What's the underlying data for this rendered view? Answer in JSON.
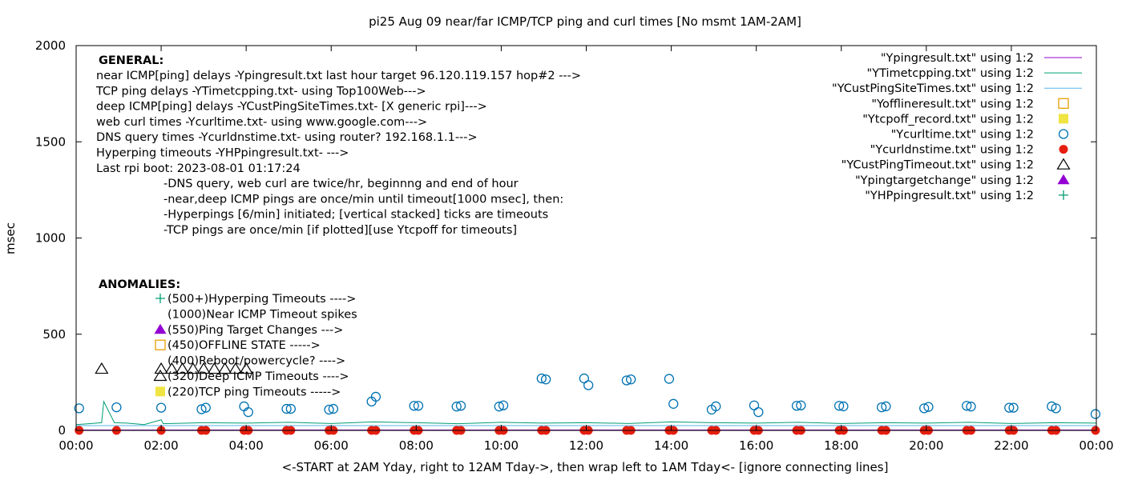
{
  "chart_data": {
    "type": "scatter",
    "title": "pi25 Aug 09  near/far ICMP/TCP ping and curl times [No msmt 1AM-2AM]",
    "xlabel": "<-START at 2AM Yday, right to 12AM Tday->, then wrap left to 1AM Tday<- [ignore connecting lines]",
    "ylabel": "msec",
    "xlim": [
      0,
      24
    ],
    "ylim": [
      0,
      2000
    ],
    "grid": false,
    "legend_position": "top-right",
    "x_ticks": [
      {
        "v": 0,
        "label": "00:00"
      },
      {
        "v": 2,
        "label": "02:00"
      },
      {
        "v": 4,
        "label": "04:00"
      },
      {
        "v": 6,
        "label": "06:00"
      },
      {
        "v": 8,
        "label": "08:00"
      },
      {
        "v": 10,
        "label": "10:00"
      },
      {
        "v": 12,
        "label": "12:00"
      },
      {
        "v": 14,
        "label": "14:00"
      },
      {
        "v": 16,
        "label": "16:00"
      },
      {
        "v": 18,
        "label": "18:00"
      },
      {
        "v": 20,
        "label": "20:00"
      },
      {
        "v": 22,
        "label": "22:00"
      },
      {
        "v": 24,
        "label": "00:00"
      }
    ],
    "y_ticks": [
      {
        "v": 0,
        "label": "0"
      },
      {
        "v": 500,
        "label": "500"
      },
      {
        "v": 1000,
        "label": "1000"
      },
      {
        "v": 1500,
        "label": "1500"
      },
      {
        "v": 2000,
        "label": "2000"
      }
    ],
    "series": [
      {
        "name": "\"Ypingresult.txt\" using 1:2",
        "color": "#9400d3",
        "style": "line",
        "x": [
          0,
          24
        ],
        "y": [
          2,
          2
        ]
      },
      {
        "name": "\"YTimetcpping.txt\" using 1:2",
        "color": "#009e73",
        "style": "line",
        "x": [
          0,
          0.3,
          0.6,
          0.65,
          0.9,
          1.2,
          1.6,
          2.0,
          2.05,
          3.0,
          4.0,
          5.0,
          6.0,
          7.0,
          8.0,
          9.0,
          10.0,
          11.0,
          12.0,
          13.0,
          14.0,
          15.0,
          16.0,
          17.0,
          18.0,
          19.0,
          20.0,
          21.0,
          22.0,
          23.0,
          24.0
        ],
        "y": [
          30,
          35,
          40,
          150,
          40,
          38,
          30,
          55,
          35,
          40,
          38,
          42,
          36,
          44,
          40,
          35,
          42,
          38,
          40,
          36,
          44,
          40,
          38,
          42,
          36,
          40,
          38,
          42,
          36,
          40,
          38
        ]
      },
      {
        "name": "\"YCustPingSiteTimes.txt\" using 1:2",
        "color": "#56b4e9",
        "style": "line",
        "x": [
          0,
          24
        ],
        "y": [
          25,
          25
        ]
      },
      {
        "name": "\"Yofflineresult.txt\" using 1:2",
        "color": "#e69f00",
        "style": "open-square",
        "x": [],
        "y": []
      },
      {
        "name": "\"Ytcpoff_record.txt\" using 1:2",
        "color": "#f0e442",
        "style": "filled-square",
        "x": [],
        "y": []
      },
      {
        "name": "\"Ycurltime.txt\" using 1:2",
        "color": "#0072b2",
        "style": "open-circle",
        "x": [
          0.07,
          0.95,
          2.0,
          2.95,
          3.05,
          3.95,
          4.05,
          4.95,
          5.05,
          5.95,
          6.05,
          6.95,
          7.05,
          7.95,
          8.05,
          8.95,
          9.05,
          9.95,
          10.05,
          10.95,
          11.05,
          11.95,
          12.05,
          12.95,
          13.05,
          13.95,
          14.05,
          14.95,
          15.05,
          15.95,
          16.05,
          16.95,
          17.05,
          17.95,
          18.05,
          18.95,
          19.05,
          19.95,
          20.05,
          20.95,
          21.05,
          21.95,
          22.05,
          22.95,
          23.05,
          23.98
        ],
        "y": [
          115,
          120,
          118,
          110,
          118,
          125,
          95,
          112,
          112,
          108,
          112,
          150,
          175,
          128,
          128,
          124,
          128,
          124,
          130,
          270,
          265,
          270,
          235,
          260,
          265,
          268,
          138,
          108,
          125,
          130,
          95,
          128,
          130,
          128,
          125,
          120,
          125,
          115,
          122,
          128,
          124,
          118,
          118,
          125,
          115,
          85
        ]
      },
      {
        "name": "\"Ycurldnstime.txt\" using 1:2",
        "color": "#e51e10",
        "style": "filled-circle",
        "x": [
          0.07,
          0.95,
          2.0,
          2.95,
          3.05,
          3.95,
          4.05,
          4.95,
          5.05,
          5.95,
          6.05,
          6.95,
          7.05,
          7.95,
          8.05,
          8.95,
          9.05,
          9.95,
          10.05,
          10.95,
          11.05,
          11.95,
          12.05,
          12.95,
          13.05,
          13.95,
          14.05,
          14.95,
          15.05,
          15.95,
          16.05,
          16.95,
          17.05,
          17.95,
          18.05,
          18.95,
          19.05,
          19.95,
          20.05,
          20.95,
          21.05,
          21.95,
          22.05,
          22.95,
          23.05,
          23.98
        ],
        "y": [
          0,
          0,
          0,
          0,
          0,
          0,
          0,
          0,
          0,
          0,
          0,
          0,
          0,
          0,
          0,
          0,
          0,
          0,
          0,
          0,
          0,
          0,
          0,
          0,
          0,
          0,
          0,
          0,
          0,
          0,
          0,
          0,
          0,
          0,
          0,
          0,
          0,
          0,
          0,
          0,
          0,
          0,
          0,
          0,
          0,
          0
        ]
      },
      {
        "name": "\"YCustPingTimeout.txt\" using 1:2",
        "color": "#000000",
        "style": "open-triangle",
        "x": [
          0.6,
          2.0,
          2.25,
          2.5,
          2.75,
          3.0,
          3.25,
          3.5,
          3.75,
          4.0
        ],
        "y": [
          320,
          320,
          320,
          320,
          320,
          320,
          320,
          320,
          320,
          320
        ]
      },
      {
        "name": "\"Ypingtargetchange\" using 1:2",
        "color": "#9400d3",
        "style": "filled-triangle",
        "x": [],
        "y": []
      },
      {
        "name": "\"YHPpingresult.txt\" using 1:2",
        "color": "#009e73",
        "style": "plus",
        "x": [],
        "y": []
      }
    ],
    "annotations": {
      "general": {
        "heading": "GENERAL:",
        "lines": [
          "near ICMP[ping] delays -Ypingresult.txt last hour target 96.120.119.157 hop#2 --->",
          "TCP ping delays -YTimetcpping.txt- using Top100Web--->",
          "deep ICMP[ping] delays -YCustPingSiteTimes.txt- [X generic rpi]--->",
          "web curl times -Ycurltime.txt- using www.google.com--->",
          "DNS query times -Ycurldnstime.txt- using router? 192.168.1.1--->",
          "Hyperping timeouts -YHPpingresult.txt- --->",
          "Last rpi boot: 2023-08-01 01:17:24"
        ],
        "notes": [
          "-DNS query, web curl are twice/hr, beginnng and end of hour",
          "-near,deep ICMP pings are once/min until timeout[1000 msec], then:",
          "  -Hyperpings [6/min] initiated; [vertical stacked] ticks are timeouts",
          "-TCP pings are once/min [if plotted][use Ytcpoff for timeouts]"
        ]
      },
      "anomalies": {
        "heading": "ANOMALIES:",
        "items": [
          {
            "text": "(500+)Hyperping Timeouts ---->",
            "marker": "plus",
            "color": "#009e73"
          },
          {
            "text": "(1000)Near ICMP Timeout spikes",
            "marker": "none",
            "color": "#9400d3"
          },
          {
            "text": "(550)Ping Target Changes --->",
            "marker": "filled-triangle",
            "color": "#9400d3"
          },
          {
            "text": "(450)OFFLINE STATE ----->",
            "marker": "open-square",
            "color": "#e69f00"
          },
          {
            "text": "(400)Reboot/powercycle? ---->",
            "marker": "none",
            "color": "#000000"
          },
          {
            "text": "(320)Deep ICMP Timeouts ---->",
            "marker": "open-triangle",
            "color": "#000000"
          },
          {
            "text": "(220)TCP ping Timeouts ----->",
            "marker": "filled-square",
            "color": "#f0e442"
          }
        ]
      }
    }
  }
}
